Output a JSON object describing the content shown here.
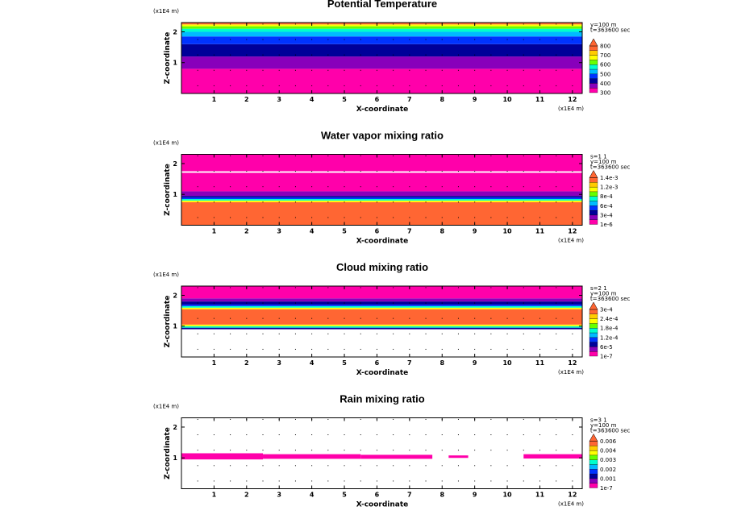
{
  "chart_data": [
    {
      "type": "heatmap",
      "title": "Potential Temperature",
      "xlabel": "X-coordinate",
      "ylabel": "Z-coordinate",
      "x_unit": "(x1E4 m)",
      "z_unit": "(x1E4 m)",
      "xlim": [
        0,
        12.3
      ],
      "ylim": [
        0,
        2.3
      ],
      "x_ticks": [
        "1",
        "2",
        "3",
        "4",
        "5",
        "6",
        "7",
        "8",
        "9",
        "10",
        "11",
        "12"
      ],
      "y_ticks": [
        "1",
        "2"
      ],
      "info_lines": [
        "y=100 m",
        "t=363600 sec"
      ],
      "levels": [
        "800",
        "700",
        "600",
        "500",
        "400",
        "300"
      ],
      "colors": [
        "#ff00aa",
        "#8800bb",
        "#000099",
        "#0033ff",
        "#00bbff",
        "#00ffcc",
        "#66ff00",
        "#ffff00",
        "#ffcc00",
        "#ff6633"
      ],
      "bands": [
        {
          "z": [
            0,
            0.8
          ],
          "c": 0
        },
        {
          "z": [
            0.8,
            1.2
          ],
          "c": 1
        },
        {
          "z": [
            1.2,
            1.6
          ],
          "c": 2
        },
        {
          "z": [
            1.6,
            1.85
          ],
          "c": 3
        },
        {
          "z": [
            1.85,
            2.0
          ],
          "c": 4
        },
        {
          "z": [
            2.0,
            2.1
          ],
          "c": 5
        },
        {
          "z": [
            2.1,
            2.18
          ],
          "c": 6
        },
        {
          "z": [
            2.18,
            2.24
          ],
          "c": 7
        },
        {
          "z": [
            2.24,
            2.3
          ],
          "c": 9
        }
      ],
      "patches": []
    },
    {
      "type": "heatmap",
      "title": "Water vapor mixing ratio",
      "xlabel": "X-coordinate",
      "ylabel": "Z-coordinate",
      "x_unit": "(x1E4 m)",
      "z_unit": "(x1E4 m)",
      "xlim": [
        0,
        12.3
      ],
      "ylim": [
        0,
        2.3
      ],
      "x_ticks": [
        "1",
        "2",
        "3",
        "4",
        "5",
        "6",
        "7",
        "8",
        "9",
        "10",
        "11",
        "12"
      ],
      "y_ticks": [
        "1",
        "2"
      ],
      "info_lines": [
        "s=1 1",
        "y=100 m",
        "t=363600 sec"
      ],
      "levels": [
        "1.4e-3",
        "1.2e-3",
        "8e-4",
        "6e-4",
        "3e-4",
        "1e-6"
      ],
      "colors": [
        "#ff00aa",
        "#8800bb",
        "#000099",
        "#0033ff",
        "#00bbff",
        "#00ffcc",
        "#66ff00",
        "#ffff00",
        "#ffcc00",
        "#ff6633"
      ],
      "bands": [
        {
          "z": [
            0,
            0.75
          ],
          "c": 9
        },
        {
          "z": [
            0.75,
            0.8
          ],
          "c": 7
        },
        {
          "z": [
            0.8,
            0.85
          ],
          "c": 5
        },
        {
          "z": [
            0.85,
            0.9
          ],
          "c": 3
        },
        {
          "z": [
            0.9,
            0.95
          ],
          "c": 2
        },
        {
          "z": [
            0.95,
            1.1
          ],
          "c": 1
        },
        {
          "z": [
            1.1,
            1.7
          ],
          "c": 0
        },
        {
          "z": [
            1.75,
            2.3
          ],
          "c": 0
        }
      ],
      "patches": []
    },
    {
      "type": "heatmap",
      "title": "Cloud mixing ratio",
      "xlabel": "X-coordinate",
      "ylabel": "Z-coordinate",
      "x_unit": "(x1E4 m)",
      "z_unit": "(x1E4 m)",
      "xlim": [
        0,
        12.3
      ],
      "ylim": [
        0,
        2.3
      ],
      "x_ticks": [
        "1",
        "2",
        "3",
        "4",
        "5",
        "6",
        "7",
        "8",
        "9",
        "10",
        "11",
        "12"
      ],
      "y_ticks": [
        "1",
        "2"
      ],
      "info_lines": [
        "s=2 1",
        "y=100 m",
        "t=363600 sec"
      ],
      "levels": [
        "3e-4",
        "2.4e-4",
        "1.8e-4",
        "1.2e-4",
        "6e-5",
        "1e-7"
      ],
      "colors": [
        "#ff00aa",
        "#8800bb",
        "#000099",
        "#0033ff",
        "#00bbff",
        "#00ffcc",
        "#66ff00",
        "#ffff00",
        "#ffcc00",
        "#ff6633"
      ],
      "bands": [
        {
          "z": [
            0.9,
            0.95
          ],
          "c": 2
        },
        {
          "z": [
            0.95,
            1.0
          ],
          "c": 5
        },
        {
          "z": [
            1.0,
            1.05
          ],
          "c": 7
        },
        {
          "z": [
            1.05,
            1.55
          ],
          "c": 9
        },
        {
          "z": [
            1.55,
            1.6
          ],
          "c": 7
        },
        {
          "z": [
            1.6,
            1.65
          ],
          "c": 5
        },
        {
          "z": [
            1.65,
            1.7
          ],
          "c": 3
        },
        {
          "z": [
            1.7,
            1.8
          ],
          "c": 2
        },
        {
          "z": [
            1.8,
            1.9
          ],
          "c": 1
        },
        {
          "z": [
            1.9,
            2.3
          ],
          "c": 0
        }
      ],
      "patches": []
    },
    {
      "type": "heatmap",
      "title": "Rain mixing ratio",
      "xlabel": "X-coordinate",
      "ylabel": "Z-coordinate",
      "x_unit": "(x1E4 m)",
      "z_unit": "(x1E4 m)",
      "xlim": [
        0,
        12.3
      ],
      "ylim": [
        0,
        2.3
      ],
      "x_ticks": [
        "1",
        "2",
        "3",
        "4",
        "5",
        "6",
        "7",
        "8",
        "9",
        "10",
        "11",
        "12"
      ],
      "y_ticks": [
        "1",
        "2"
      ],
      "info_lines": [
        "s=3 1",
        "y=100 m",
        "t=363600 sec"
      ],
      "levels": [
        "0.006",
        "0.004",
        "0.003",
        "0.002",
        "0.001",
        "1e-7"
      ],
      "colors": [
        "#ff00aa",
        "#8800bb",
        "#000099",
        "#0033ff",
        "#00bbff",
        "#00ffcc",
        "#66ff00",
        "#ffff00",
        "#ffcc00",
        "#ff6633"
      ],
      "bands": [],
      "patches": [
        {
          "x": [
            0,
            2.5
          ],
          "z": [
            0.95,
            1.15
          ],
          "c": 0
        },
        {
          "x": [
            2.5,
            5.5
          ],
          "z": [
            0.97,
            1.12
          ],
          "c": 0
        },
        {
          "x": [
            5.5,
            7.7
          ],
          "z": [
            0.97,
            1.1
          ],
          "c": 0
        },
        {
          "x": [
            8.2,
            8.8
          ],
          "z": [
            1.0,
            1.08
          ],
          "c": 0
        },
        {
          "x": [
            10.5,
            12.3
          ],
          "z": [
            0.98,
            1.12
          ],
          "c": 0
        }
      ]
    }
  ]
}
